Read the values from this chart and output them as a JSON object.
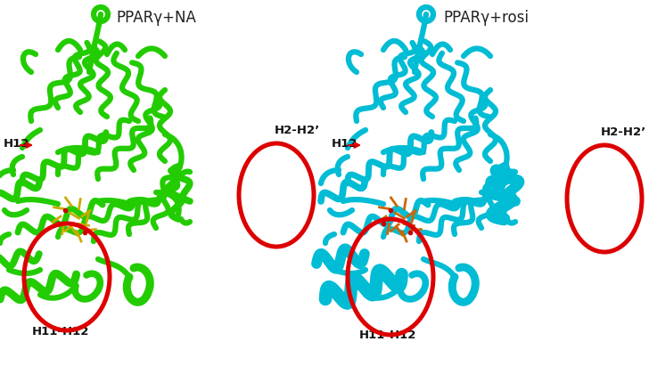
{
  "title_left": "PPARγ+NA",
  "title_right": "PPARγ+rosi",
  "label_H12_left": "H12",
  "label_H12_right": "H12",
  "label_H11H12_left": "H11-H12",
  "label_H11H12_right": "H11-H12",
  "label_H2H2p_left": "H2-H2’",
  "label_H2H2p_right": "H2-H2’",
  "color_left": "#22cc00",
  "color_right": "#00bcd4",
  "circle_color": "#dd0000",
  "bg_color": "#ffffff",
  "fig_width": 7.28,
  "fig_height": 4.11,
  "dpi": 100,
  "title_fontsize": 12,
  "label_fontsize": 9.5,
  "circle_linewidth": 2.0
}
